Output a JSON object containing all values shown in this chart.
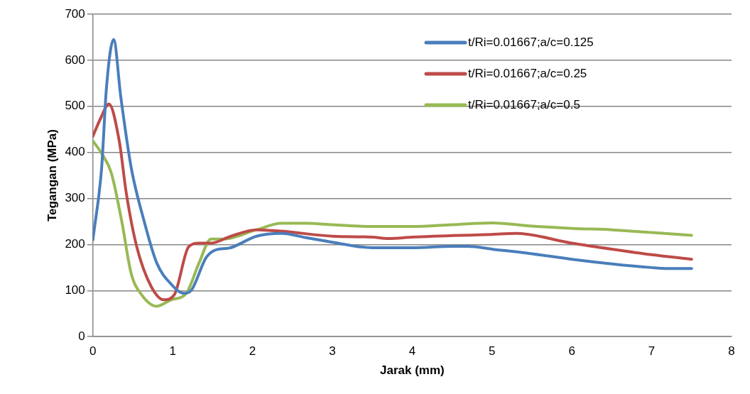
{
  "chart_data": {
    "type": "line",
    "xlabel": "Jarak (mm)",
    "ylabel": "Tegangan (MPa)",
    "xlim": [
      0,
      8
    ],
    "xticks": [
      0,
      1,
      2,
      3,
      4,
      5,
      6,
      7,
      8
    ],
    "ylim": [
      0,
      700
    ],
    "yticks": [
      0,
      100,
      200,
      300,
      400,
      500,
      600,
      700
    ],
    "grid": "y",
    "legend": "top right",
    "marker": "none",
    "line_style": "solid",
    "series": [
      {
        "name": "t/Ri=0.01667;a/c=0.125",
        "color": "#4a7ebb",
        "x": [
          0,
          0.11,
          0.17,
          0.26,
          0.35,
          0.48,
          0.64,
          0.8,
          0.98,
          1.14,
          1.23,
          1.42,
          1.55,
          1.7,
          2.05,
          2.36,
          2.67,
          3,
          3.5,
          4,
          4.5,
          4.7,
          5,
          5.5,
          6,
          6.5,
          7,
          7.2,
          7.5
        ],
        "values": [
          210,
          367,
          540,
          645,
          520,
          367,
          252,
          160,
          114,
          94,
          100,
          172,
          189,
          192,
          218,
          224,
          215,
          205,
          193,
          193,
          196,
          196,
          190,
          180,
          168,
          158,
          150,
          148,
          148
        ]
      },
      {
        "name": "t/Ri=0.01667;a/c=0.25",
        "color": "#be4b48",
        "x": [
          0,
          0.1,
          0.2,
          0.33,
          0.42,
          0.55,
          0.73,
          0.89,
          1.02,
          1.2,
          1.33,
          1.48,
          1.73,
          2.05,
          2.36,
          3,
          3.5,
          3.7,
          4,
          5,
          5.3,
          6,
          6.5,
          7,
          7.5
        ],
        "values": [
          435,
          475,
          505,
          425,
          310,
          195,
          109,
          80,
          91,
          195,
          203,
          203,
          218,
          232,
          229,
          218,
          216,
          213,
          216,
          222,
          224,
          203,
          190,
          178,
          168
        ]
      },
      {
        "name": "t/Ri=0.01667;a/c=0.5",
        "color": "#98b954",
        "x": [
          0,
          0.12,
          0.23,
          0.36,
          0.48,
          0.61,
          0.8,
          0.98,
          1.17,
          1.33,
          1.48,
          1.64,
          2.05,
          2.36,
          2.67,
          3,
          3.5,
          4,
          4.5,
          5,
          5.5,
          6,
          6.5,
          7,
          7.5
        ],
        "values": [
          425,
          395,
          356,
          252,
          137,
          91,
          66,
          80,
          94,
          160,
          212,
          212,
          232,
          246,
          246,
          243,
          239,
          239,
          243,
          247,
          240,
          235,
          232,
          226,
          220
        ]
      }
    ]
  }
}
